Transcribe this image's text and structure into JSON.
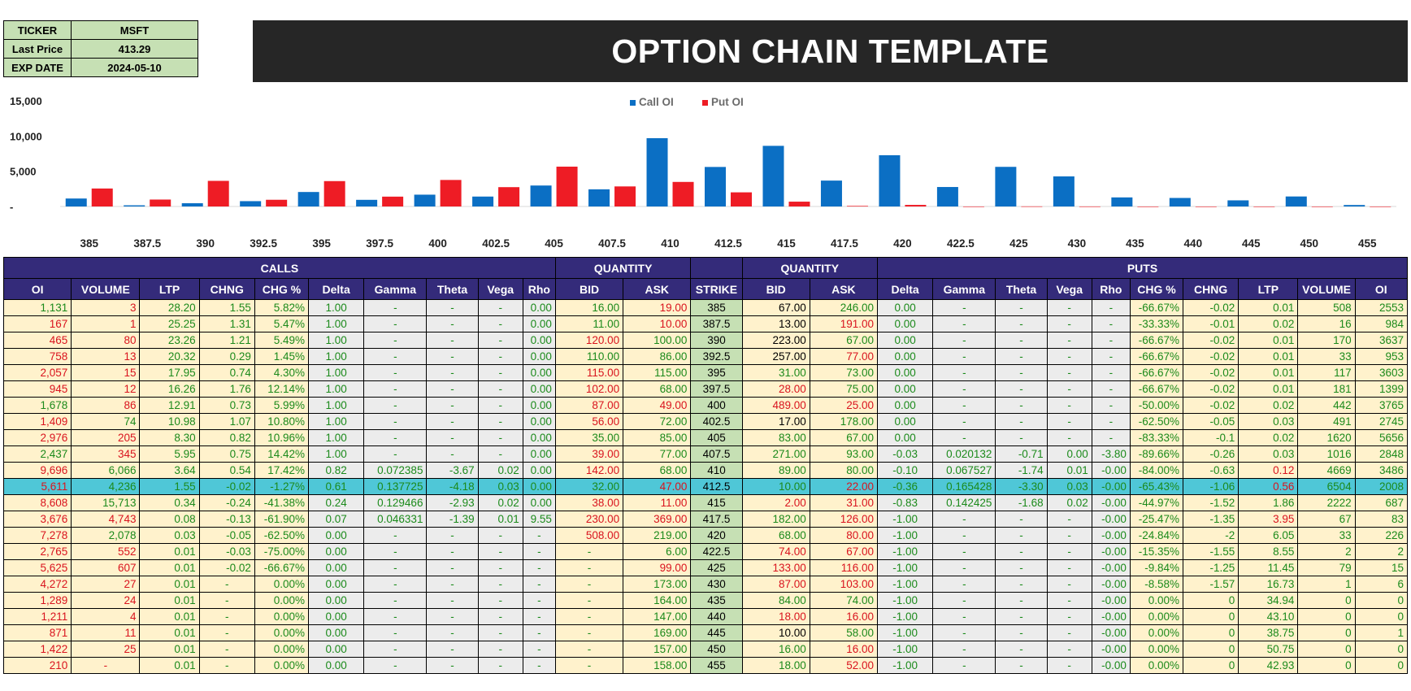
{
  "info": {
    "ticker_label": "TICKER",
    "ticker": "MSFT",
    "price_label": "Last Price",
    "price": "413.29",
    "exp_label": "EXP DATE",
    "exp": "2024-05-10"
  },
  "title": "OPTION CHAIN TEMPLATE",
  "colors": {
    "call": "#0b6fc4",
    "put": "#ee1c25",
    "header": "#342b7a",
    "atm": "#4fc7d7"
  },
  "chart_data": {
    "type": "bar",
    "categories": [
      "385",
      "387.5",
      "390",
      "392.5",
      "395",
      "397.5",
      "400",
      "402.5",
      "405",
      "407.5",
      "410",
      "412.5",
      "415",
      "417.5",
      "420",
      "422.5",
      "425",
      "430",
      "435",
      "440",
      "445",
      "450",
      "455"
    ],
    "series": [
      {
        "name": "Call OI",
        "values": [
          1131,
          167,
          465,
          758,
          2057,
          945,
          1678,
          1409,
          2976,
          2437,
          9696,
          5611,
          8608,
          3676,
          7278,
          2765,
          5625,
          4272,
          1289,
          1211,
          871,
          1422,
          210
        ]
      },
      {
        "name": "Put OI",
        "values": [
          2553,
          984,
          3637,
          953,
          3603,
          1399,
          3765,
          2745,
          5656,
          2848,
          3486,
          2008,
          687,
          83,
          226,
          2,
          15,
          6,
          0,
          0,
          1,
          0,
          0
        ]
      }
    ],
    "yticks": [
      "15,000",
      "10,000",
      "5,000",
      "-"
    ],
    "ylim": [
      0,
      15000
    ],
    "legend": "top-center"
  },
  "chain": {
    "sections": {
      "calls": "CALLS",
      "qty_left": "QUANTITY",
      "qty_right": "QUANTITY",
      "puts": "PUTS"
    },
    "columns": [
      "OI",
      "VOLUME",
      "LTP",
      "CHNG",
      "CHG %",
      "Delta",
      "Gamma",
      "Theta",
      "Vega",
      "Rho",
      "BID",
      "ASK",
      "STRIKE",
      "BID",
      "ASK",
      "Delta",
      "Gamma",
      "Theta",
      "Vega",
      "Rho",
      "CHG %",
      "CHNG",
      "LTP",
      "VOLUME",
      "OI"
    ],
    "atm_strike": "412.5",
    "rows": [
      [
        "1,131",
        "3",
        "28.20",
        "1.55",
        "5.82%",
        "1.00",
        "-",
        "-",
        "-",
        "0.00",
        "16.00",
        "19.00",
        "385",
        "67.00",
        "246.00",
        "0.00",
        "-",
        "-",
        "-",
        "-",
        "-66.67%",
        "-0.02",
        "0.01",
        "508",
        "2553"
      ],
      [
        "167",
        "1",
        "25.25",
        "1.31",
        "5.47%",
        "1.00",
        "-",
        "-",
        "-",
        "0.00",
        "11.00",
        "10.00",
        "387.5",
        "13.00",
        "191.00",
        "0.00",
        "-",
        "-",
        "-",
        "-",
        "-33.33%",
        "-0.01",
        "0.02",
        "16",
        "984"
      ],
      [
        "465",
        "80",
        "23.26",
        "1.21",
        "5.49%",
        "1.00",
        "-",
        "-",
        "-",
        "0.00",
        "120.00",
        "100.00",
        "390",
        "223.00",
        "67.00",
        "0.00",
        "-",
        "-",
        "-",
        "-",
        "-66.67%",
        "-0.02",
        "0.01",
        "170",
        "3637"
      ],
      [
        "758",
        "13",
        "20.32",
        "0.29",
        "1.45%",
        "1.00",
        "-",
        "-",
        "-",
        "0.00",
        "110.00",
        "86.00",
        "392.5",
        "257.00",
        "77.00",
        "0.00",
        "-",
        "-",
        "-",
        "-",
        "-66.67%",
        "-0.02",
        "0.01",
        "33",
        "953"
      ],
      [
        "2,057",
        "15",
        "17.95",
        "0.74",
        "4.30%",
        "1.00",
        "-",
        "-",
        "-",
        "0.00",
        "115.00",
        "115.00",
        "395",
        "31.00",
        "73.00",
        "0.00",
        "-",
        "-",
        "-",
        "-",
        "-66.67%",
        "-0.02",
        "0.01",
        "117",
        "3603"
      ],
      [
        "945",
        "12",
        "16.26",
        "1.76",
        "12.14%",
        "1.00",
        "-",
        "-",
        "-",
        "0.00",
        "102.00",
        "68.00",
        "397.5",
        "28.00",
        "75.00",
        "0.00",
        "-",
        "-",
        "-",
        "-",
        "-66.67%",
        "-0.02",
        "0.01",
        "181",
        "1399"
      ],
      [
        "1,678",
        "86",
        "12.91",
        "0.73",
        "5.99%",
        "1.00",
        "-",
        "-",
        "-",
        "0.00",
        "87.00",
        "49.00",
        "400",
        "489.00",
        "25.00",
        "0.00",
        "-",
        "-",
        "-",
        "-",
        "-50.00%",
        "-0.02",
        "0.02",
        "442",
        "3765"
      ],
      [
        "1,409",
        "74",
        "10.98",
        "1.07",
        "10.80%",
        "1.00",
        "-",
        "-",
        "-",
        "0.00",
        "56.00",
        "72.00",
        "402.5",
        "17.00",
        "178.00",
        "0.00",
        "-",
        "-",
        "-",
        "-",
        "-62.50%",
        "-0.05",
        "0.03",
        "491",
        "2745"
      ],
      [
        "2,976",
        "205",
        "8.30",
        "0.82",
        "10.96%",
        "1.00",
        "-",
        "-",
        "-",
        "0.00",
        "35.00",
        "85.00",
        "405",
        "83.00",
        "67.00",
        "0.00",
        "-",
        "-",
        "-",
        "-",
        "-83.33%",
        "-0.1",
        "0.02",
        "1620",
        "5656"
      ],
      [
        "2,437",
        "345",
        "5.95",
        "0.75",
        "14.42%",
        "1.00",
        "-",
        "-",
        "-",
        "0.00",
        "39.00",
        "77.00",
        "407.5",
        "271.00",
        "93.00",
        "-0.03",
        "0.020132",
        "-0.71",
        "0.00",
        "-3.80",
        "-89.66%",
        "-0.26",
        "0.03",
        "1016",
        "2848"
      ],
      [
        "9,696",
        "6,066",
        "3.64",
        "0.54",
        "17.42%",
        "0.82",
        "0.072385",
        "-3.67",
        "0.02",
        "0.00",
        "142.00",
        "68.00",
        "410",
        "89.00",
        "80.00",
        "-0.10",
        "0.067527",
        "-1.74",
        "0.01",
        "-0.00",
        "-84.00%",
        "-0.63",
        "0.12",
        "4669",
        "3486"
      ],
      [
        "5,611",
        "4,236",
        "1.55",
        "-0.02",
        "-1.27%",
        "0.61",
        "0.137725",
        "-4.18",
        "0.03",
        "0.00",
        "32.00",
        "47.00",
        "412.5",
        "10.00",
        "22.00",
        "-0.36",
        "0.165428",
        "-3.30",
        "0.03",
        "-0.00",
        "-65.43%",
        "-1.06",
        "0.56",
        "6504",
        "2008"
      ],
      [
        "8,608",
        "15,713",
        "0.34",
        "-0.24",
        "-41.38%",
        "0.24",
        "0.129466",
        "-2.93",
        "0.02",
        "0.00",
        "38.00",
        "11.00",
        "415",
        "2.00",
        "31.00",
        "-0.83",
        "0.142425",
        "-1.68",
        "0.02",
        "-0.00",
        "-44.97%",
        "-1.52",
        "1.86",
        "2222",
        "687"
      ],
      [
        "3,676",
        "4,743",
        "0.08",
        "-0.13",
        "-61.90%",
        "0.07",
        "0.046331",
        "-1.39",
        "0.01",
        "9.55",
        "230.00",
        "369.00",
        "417.5",
        "182.00",
        "126.00",
        "-1.00",
        "-",
        "-",
        "-",
        "-0.00",
        "-25.47%",
        "-1.35",
        "3.95",
        "67",
        "83"
      ],
      [
        "7,278",
        "2,078",
        "0.03",
        "-0.05",
        "-62.50%",
        "0.00",
        "-",
        "-",
        "-",
        "-",
        "508.00",
        "219.00",
        "420",
        "68.00",
        "80.00",
        "-1.00",
        "-",
        "-",
        "-",
        "-0.00",
        "-24.84%",
        "-2",
        "6.05",
        "33",
        "226"
      ],
      [
        "2,765",
        "552",
        "0.01",
        "-0.03",
        "-75.00%",
        "0.00",
        "-",
        "-",
        "-",
        "-",
        "-",
        "6.00",
        "422.5",
        "74.00",
        "67.00",
        "-1.00",
        "-",
        "-",
        "-",
        "-0.00",
        "-15.35%",
        "-1.55",
        "8.55",
        "2",
        "2"
      ],
      [
        "5,625",
        "607",
        "0.01",
        "-0.02",
        "-66.67%",
        "0.00",
        "-",
        "-",
        "-",
        "-",
        "-",
        "99.00",
        "425",
        "133.00",
        "116.00",
        "-1.00",
        "-",
        "-",
        "-",
        "-0.00",
        "-9.84%",
        "-1.25",
        "11.45",
        "79",
        "15"
      ],
      [
        "4,272",
        "27",
        "0.01",
        "-",
        "0.00%",
        "0.00",
        "-",
        "-",
        "-",
        "-",
        "-",
        "173.00",
        "430",
        "87.00",
        "103.00",
        "-1.00",
        "-",
        "-",
        "-",
        "-0.00",
        "-8.58%",
        "-1.57",
        "16.73",
        "1",
        "6"
      ],
      [
        "1,289",
        "24",
        "0.01",
        "-",
        "0.00%",
        "0.00",
        "-",
        "-",
        "-",
        "-",
        "-",
        "164.00",
        "435",
        "84.00",
        "74.00",
        "-1.00",
        "-",
        "-",
        "-",
        "-0.00",
        "0.00%",
        "0",
        "34.94",
        "0",
        "0"
      ],
      [
        "1,211",
        "4",
        "0.01",
        "-",
        "0.00%",
        "0.00",
        "-",
        "-",
        "-",
        "-",
        "-",
        "147.00",
        "440",
        "18.00",
        "16.00",
        "-1.00",
        "-",
        "-",
        "-",
        "-0.00",
        "0.00%",
        "0",
        "43.10",
        "0",
        "0"
      ],
      [
        "871",
        "11",
        "0.01",
        "-",
        "0.00%",
        "0.00",
        "-",
        "-",
        "-",
        "-",
        "-",
        "169.00",
        "445",
        "10.00",
        "58.00",
        "-1.00",
        "-",
        "-",
        "-",
        "-0.00",
        "0.00%",
        "0",
        "38.75",
        "0",
        "1"
      ],
      [
        "1,422",
        "25",
        "0.01",
        "-",
        "0.00%",
        "0.00",
        "-",
        "-",
        "-",
        "-",
        "-",
        "157.00",
        "450",
        "16.00",
        "16.00",
        "-1.00",
        "-",
        "-",
        "-",
        "-0.00",
        "0.00%",
        "0",
        "50.75",
        "0",
        "0"
      ],
      [
        "210",
        "-",
        "0.01",
        "-",
        "0.00%",
        "0.00",
        "-",
        "-",
        "-",
        "-",
        "-",
        "158.00",
        "455",
        "18.00",
        "52.00",
        "-1.00",
        "-",
        "-",
        "-",
        "-0.00",
        "0.00%",
        "0",
        "42.93",
        "0",
        "0"
      ]
    ],
    "colors": [
      [
        "g",
        "n",
        "g",
        "g",
        "g",
        "g",
        "g",
        "g",
        "g",
        "g",
        "g",
        "n",
        "s",
        "k",
        "g",
        "g",
        "g",
        "g",
        "g",
        "g",
        "g",
        "g",
        "g",
        "g",
        "g"
      ],
      [
        "n",
        "n",
        "g",
        "g",
        "g",
        "g",
        "g",
        "g",
        "g",
        "g",
        "g",
        "n",
        "s",
        "k",
        "n",
        "g",
        "g",
        "g",
        "g",
        "g",
        "g",
        "g",
        "g",
        "g",
        "g"
      ],
      [
        "n",
        "n",
        "g",
        "g",
        "g",
        "g",
        "g",
        "g",
        "g",
        "g",
        "n",
        "g",
        "s",
        "k",
        "g",
        "g",
        "g",
        "g",
        "g",
        "g",
        "g",
        "g",
        "g",
        "g",
        "g"
      ],
      [
        "n",
        "n",
        "g",
        "g",
        "g",
        "g",
        "g",
        "g",
        "g",
        "g",
        "g",
        "g",
        "s",
        "k",
        "n",
        "g",
        "g",
        "g",
        "g",
        "g",
        "g",
        "g",
        "g",
        "g",
        "g"
      ],
      [
        "n",
        "n",
        "g",
        "g",
        "g",
        "g",
        "g",
        "g",
        "g",
        "g",
        "n",
        "g",
        "s",
        "g",
        "g",
        "g",
        "g",
        "g",
        "g",
        "g",
        "g",
        "g",
        "g",
        "g",
        "g"
      ],
      [
        "n",
        "n",
        "g",
        "g",
        "g",
        "g",
        "g",
        "g",
        "g",
        "g",
        "n",
        "g",
        "s",
        "n",
        "g",
        "g",
        "g",
        "g",
        "g",
        "g",
        "g",
        "g",
        "g",
        "g",
        "g"
      ],
      [
        "g",
        "n",
        "g",
        "g",
        "g",
        "g",
        "g",
        "g",
        "g",
        "g",
        "n",
        "n",
        "s",
        "n",
        "n",
        "g",
        "g",
        "g",
        "g",
        "g",
        "g",
        "g",
        "g",
        "g",
        "g"
      ],
      [
        "n",
        "g",
        "g",
        "g",
        "g",
        "g",
        "g",
        "g",
        "g",
        "g",
        "n",
        "g",
        "s",
        "k",
        "g",
        "g",
        "g",
        "g",
        "g",
        "g",
        "g",
        "g",
        "g",
        "g",
        "g"
      ],
      [
        "n",
        "n",
        "g",
        "g",
        "g",
        "g",
        "g",
        "g",
        "g",
        "g",
        "g",
        "g",
        "s",
        "g",
        "g",
        "g",
        "g",
        "g",
        "g",
        "g",
        "g",
        "g",
        "g",
        "g",
        "g"
      ],
      [
        "g",
        "n",
        "g",
        "g",
        "g",
        "g",
        "g",
        "g",
        "g",
        "g",
        "n",
        "g",
        "s",
        "g",
        "g",
        "g",
        "g",
        "g",
        "g",
        "g",
        "g",
        "g",
        "g",
        "g",
        "g"
      ],
      [
        "n",
        "g",
        "g",
        "g",
        "g",
        "g",
        "g",
        "g",
        "g",
        "g",
        "n",
        "g",
        "s",
        "g",
        "g",
        "g",
        "g",
        "g",
        "g",
        "g",
        "g",
        "g",
        "n",
        "g",
        "g"
      ],
      [
        "n",
        "g",
        "g",
        "g",
        "g",
        "g",
        "g",
        "g",
        "g",
        "g",
        "g",
        "n",
        "s",
        "g",
        "n",
        "g",
        "g",
        "g",
        "g",
        "g",
        "g",
        "g",
        "n",
        "g",
        "g"
      ],
      [
        "n",
        "g",
        "g",
        "g",
        "g",
        "g",
        "g",
        "g",
        "g",
        "g",
        "n",
        "n",
        "s",
        "n",
        "n",
        "g",
        "g",
        "g",
        "g",
        "g",
        "g",
        "g",
        "g",
        "g",
        "g"
      ],
      [
        "n",
        "n",
        "g",
        "g",
        "g",
        "g",
        "g",
        "g",
        "g",
        "g",
        "n",
        "n",
        "s",
        "g",
        "n",
        "g",
        "g",
        "g",
        "g",
        "g",
        "g",
        "g",
        "n",
        "g",
        "g"
      ],
      [
        "n",
        "g",
        "g",
        "g",
        "g",
        "g",
        "g",
        "g",
        "g",
        "g",
        "n",
        "g",
        "s",
        "g",
        "n",
        "g",
        "g",
        "g",
        "g",
        "g",
        "g",
        "g",
        "g",
        "g",
        "g"
      ],
      [
        "n",
        "n",
        "g",
        "g",
        "g",
        "g",
        "g",
        "g",
        "g",
        "g",
        "g",
        "g",
        "s",
        "n",
        "n",
        "g",
        "g",
        "g",
        "g",
        "g",
        "g",
        "g",
        "g",
        "g",
        "g"
      ],
      [
        "n",
        "n",
        "g",
        "g",
        "g",
        "g",
        "g",
        "g",
        "g",
        "g",
        "g",
        "n",
        "s",
        "n",
        "n",
        "g",
        "g",
        "g",
        "g",
        "g",
        "g",
        "g",
        "g",
        "g",
        "g"
      ],
      [
        "n",
        "n",
        "g",
        "g",
        "g",
        "g",
        "g",
        "g",
        "g",
        "g",
        "g",
        "g",
        "s",
        "n",
        "n",
        "g",
        "g",
        "g",
        "g",
        "g",
        "g",
        "g",
        "g",
        "g",
        "g"
      ],
      [
        "n",
        "n",
        "g",
        "g",
        "g",
        "g",
        "g",
        "g",
        "g",
        "g",
        "g",
        "g",
        "s",
        "g",
        "g",
        "g",
        "g",
        "g",
        "g",
        "g",
        "g",
        "g",
        "g",
        "g",
        "g"
      ],
      [
        "n",
        "n",
        "g",
        "g",
        "g",
        "g",
        "g",
        "g",
        "g",
        "g",
        "g",
        "g",
        "s",
        "n",
        "n",
        "g",
        "g",
        "g",
        "g",
        "g",
        "g",
        "g",
        "g",
        "g",
        "g"
      ],
      [
        "n",
        "n",
        "g",
        "g",
        "g",
        "g",
        "g",
        "g",
        "g",
        "g",
        "g",
        "g",
        "s",
        "k",
        "g",
        "g",
        "g",
        "g",
        "g",
        "g",
        "g",
        "g",
        "g",
        "g",
        "g"
      ],
      [
        "n",
        "n",
        "g",
        "g",
        "g",
        "g",
        "g",
        "g",
        "g",
        "g",
        "g",
        "g",
        "s",
        "g",
        "n",
        "g",
        "g",
        "g",
        "g",
        "g",
        "g",
        "g",
        "g",
        "g",
        "g"
      ],
      [
        "n",
        "n",
        "g",
        "g",
        "g",
        "g",
        "g",
        "g",
        "g",
        "g",
        "g",
        "g",
        "s",
        "g",
        "n",
        "g",
        "g",
        "g",
        "g",
        "g",
        "g",
        "g",
        "g",
        "g",
        "g"
      ]
    ]
  }
}
